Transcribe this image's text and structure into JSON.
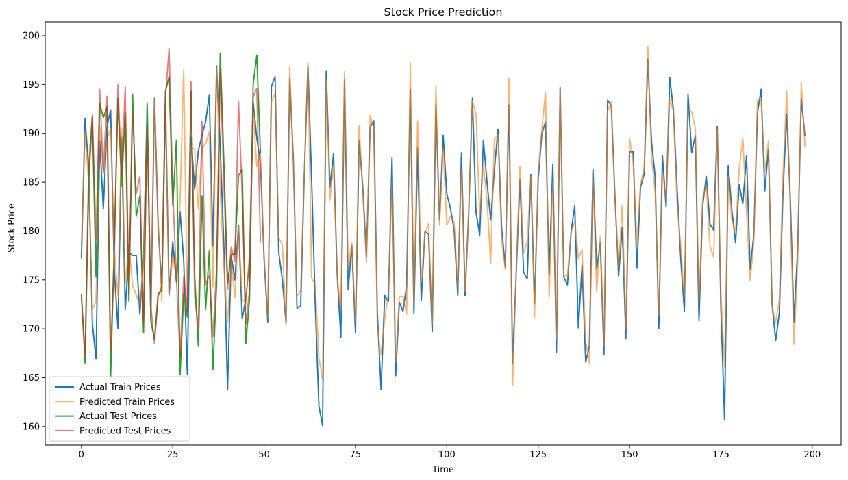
{
  "chart_data": {
    "type": "line",
    "title": "Stock Price Prediction",
    "xlabel": "Time",
    "ylabel": "Stock Price",
    "xlim": [
      -9.9,
      207.9
    ],
    "ylim": [
      158.1,
      201.4
    ],
    "xticks": [
      0,
      25,
      50,
      75,
      100,
      125,
      150,
      175,
      200
    ],
    "yticks": [
      160,
      165,
      170,
      175,
      180,
      185,
      190,
      195,
      200
    ],
    "grid": false,
    "legend_position": "lower-left",
    "series": [
      {
        "name": "Actual Train Prices",
        "color": "#1f77b4",
        "opacity": 1.0,
        "x_start": 0,
        "values": [
          177.2,
          191.5,
          186.3,
          170.5,
          166.9,
          189.2,
          182.3,
          190.7,
          192.4,
          176.0,
          170.0,
          189.6,
          172.0,
          177.8,
          177.5,
          177.5,
          171.5,
          177.3,
          192.8,
          171.2,
          193.6,
          180.5,
          174.2,
          193.4,
          173.5,
          178.9,
          174.8,
          182.0,
          177.0,
          165.3,
          189.6,
          184.3,
          188.2,
          189.8,
          191.2,
          193.9,
          178.5,
          196.9,
          188.5,
          178.4,
          163.8,
          177.5,
          175.0,
          180.6,
          171.0,
          173.1,
          176.9,
          193.2,
          189.5,
          187.0,
          177.1,
          170.7,
          194.8,
          195.8,
          177.8,
          175.0,
          170.6,
          195.6,
          187.4,
          172.1,
          172.3,
          185.8,
          196.9,
          185.3,
          172.4,
          162.1,
          160.1,
          196.4,
          184.5,
          187.9,
          175.5,
          169.1,
          195.5,
          174.0,
          178.5,
          169.6,
          189.3,
          184.5,
          177.4,
          190.6,
          191.3,
          171.5,
          163.8,
          173.4,
          172.8,
          187.5,
          165.2,
          172.7,
          171.8,
          174.4,
          194.5,
          171.6,
          188.5,
          172.9,
          179.9,
          179.7,
          169.7,
          192.9,
          181.1,
          189.8,
          183.8,
          182.3,
          180.1,
          173.4,
          188.0,
          173.4,
          182.1,
          193.6,
          181.9,
          179.6,
          189.3,
          185.0,
          181.1,
          186.2,
          190.4,
          180.3,
          176.3,
          192.9,
          166.5,
          175.8,
          185.3,
          175.8,
          175.1,
          185.8,
          172.6,
          185.3,
          189.9,
          191.2,
          175.5,
          186.8,
          167.6,
          194.7,
          175.3,
          174.5,
          179.9,
          182.6,
          170.1,
          176.5,
          166.6,
          168.2,
          186.3,
          176.1,
          178.8,
          167.4,
          193.4,
          192.8,
          183.6,
          175.4,
          180.4,
          169.0,
          188.1,
          188.1,
          176.2,
          184.5,
          185.8,
          197.6,
          189.2,
          185.6,
          170.0,
          187.7,
          182.5,
          195.7,
          192.4,
          184.4,
          177.2,
          171.8,
          194.0,
          188.0,
          189.8,
          170.8,
          182.6,
          185.6,
          180.7,
          180.1,
          190.7,
          172.1,
          160.7,
          186.7,
          182.1,
          178.8,
          184.8,
          182.8,
          187.7,
          176.1,
          179.6,
          192.1,
          194.5,
          184.1,
          188.4,
          172.5,
          168.8,
          171.7,
          184.2,
          192.0,
          183.1,
          170.7,
          178.2,
          193.6,
          189.7
        ]
      },
      {
        "name": "Predicted Train Prices",
        "color": "#ff7f0e",
        "opacity": 0.6,
        "x_start": 0,
        "values": [
          178.5,
          190.1,
          184.9,
          172.0,
          172.8,
          190.8,
          186.0,
          189.4,
          190.5,
          178.0,
          173.3,
          190.5,
          174.6,
          178.6,
          174.4,
          173.5,
          172.4,
          176.3,
          191.7,
          173.0,
          193.5,
          181.2,
          172.8,
          192.6,
          173.3,
          177.6,
          175.1,
          183.2,
          196.5,
          172.2,
          188.5,
          188.4,
          182.3,
          188.6,
          188.9,
          190.2,
          174.3,
          196.7,
          184.1,
          176.4,
          170.7,
          176.8,
          173.2,
          180.4,
          173.0,
          172.7,
          177.7,
          192.3,
          186.6,
          187.8,
          177.4,
          171.1,
          193.2,
          194.1,
          179.3,
          178.6,
          170.4,
          196.8,
          187.0,
          173.3,
          173.9,
          186.0,
          197.3,
          175.2,
          174.5,
          167.0,
          164.8,
          195.5,
          183.2,
          186.7,
          175.3,
          172.0,
          196.3,
          176.1,
          178.8,
          170.8,
          190.8,
          183.9,
          176.8,
          191.8,
          190.5,
          170.1,
          167.3,
          171.0,
          173.6,
          185.0,
          166.6,
          173.3,
          173.3,
          171.5,
          197.2,
          172.5,
          191.3,
          174.8,
          179.6,
          180.8,
          170.5,
          194.9,
          180.6,
          188.4,
          180.6,
          181.5,
          180.9,
          174.3,
          186.3,
          173.8,
          181.9,
          193.3,
          192.0,
          181.5,
          186.9,
          183.1,
          176.7,
          189.4,
          189.8,
          179.1,
          176.1,
          195.6,
          164.2,
          176.1,
          186.6,
          177.7,
          179.0,
          185.6,
          171.1,
          186.0,
          190.4,
          194.2,
          173.2,
          185.0,
          169.0,
          194.5,
          175.5,
          175.4,
          179.8,
          181.0,
          177.2,
          178.1,
          168.7,
          166.5,
          185.3,
          173.8,
          179.5,
          168.3,
          192.3,
          193.2,
          183.2,
          176.3,
          182.6,
          170.0,
          189.5,
          187.0,
          178.8,
          184.8,
          186.4,
          198.9,
          187.6,
          184.0,
          171.3,
          186.0,
          183.4,
          193.5,
          192.3,
          182.9,
          178.4,
          173.2,
          192.4,
          192.2,
          190.5,
          172.8,
          183.3,
          184.7,
          178.5,
          177.3,
          190.4,
          173.7,
          166.1,
          185.6,
          181.1,
          180.0,
          186.3,
          189.5,
          181.9,
          174.9,
          178.9,
          193.4,
          193.4,
          186.0,
          189.2,
          172.3,
          170.7,
          173.0,
          185.8,
          194.3,
          181.9,
          168.4,
          176.7,
          195.2,
          188.6
        ]
      },
      {
        "name": "Actual Test Prices",
        "color": "#2ca02c",
        "opacity": 1.0,
        "x_start": 0,
        "values": [
          173.6,
          166.5,
          185.1,
          191.7,
          175.3,
          193.1,
          191.6,
          192.7,
          165.1,
          178.7,
          193.6,
          184.6,
          192.1,
          172.8,
          194.0,
          181.5,
          183.6,
          169.6,
          193.1,
          170.8,
          168.9,
          173.6,
          173.9,
          194.3,
          195.8,
          182.6,
          189.3,
          165.3,
          173.6,
          171.2,
          194.3,
          175.4,
          168.2,
          183.6,
          172.0,
          178.0,
          165.8,
          174.6,
          198.2,
          187.0,
          174.7,
          177.6,
          177.6,
          185.7,
          186.3,
          168.5,
          173.0,
          195.0,
          198.0,
          187.9
        ]
      },
      {
        "name": "Predicted Test Prices",
        "color": "#d62728",
        "opacity": 0.6,
        "x_start": 0,
        "values": [
          173.3,
          167.3,
          186.8,
          191.9,
          179.2,
          194.5,
          186.0,
          193.8,
          167.8,
          177.1,
          195.0,
          185.6,
          194.8,
          173.5,
          192.3,
          183.8,
          185.6,
          170.5,
          190.8,
          172.3,
          168.5,
          173.3,
          174.4,
          193.7,
          198.7,
          184.0,
          175.3,
          167.2,
          175.4,
          171.8,
          195.3,
          173.3,
          170.1,
          191.2,
          174.5,
          175.5,
          169.2,
          176.2,
          196.7,
          184.9,
          174.0,
          178.4,
          176.9,
          193.3,
          183.7,
          170.5,
          173.9,
          193.7,
          194.6,
          178.8
        ]
      }
    ]
  }
}
